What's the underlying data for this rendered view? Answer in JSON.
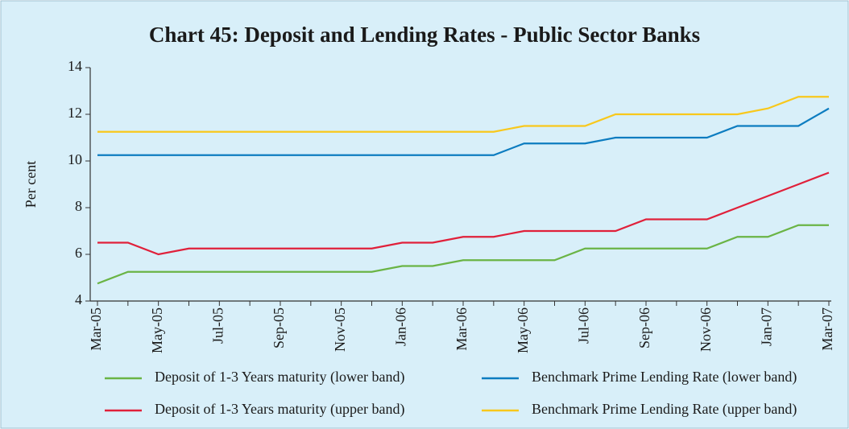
{
  "chart_data": {
    "type": "line",
    "title": "Chart 45: Deposit and Lending Rates - Public Sector Banks",
    "y_label": "Per cent",
    "categories": [
      "Mar-05",
      null,
      "May-05",
      null,
      "Jul-05",
      null,
      "Sep-05",
      null,
      "Nov-05",
      null,
      "Jan-06",
      null,
      "Mar-06",
      null,
      "May-06",
      null,
      "Jul-06",
      null,
      "Sep-06",
      null,
      "Nov-06",
      null,
      "Jan-07",
      null,
      "Mar-07"
    ],
    "series": [
      {
        "name": "Deposit of 1-3 Years maturity (lower band)",
        "color": "#6ab445",
        "values": [
          4.75,
          5.25,
          5.25,
          5.25,
          5.25,
          5.25,
          5.25,
          5.25,
          5.25,
          5.25,
          5.5,
          5.5,
          5.75,
          5.75,
          5.75,
          5.75,
          6.25,
          6.25,
          6.25,
          6.25,
          6.25,
          6.75,
          6.75,
          7.25,
          7.25
        ]
      },
      {
        "name": "Deposit of 1-3 Years maturity (upper band)",
        "color": "#e0203a",
        "values": [
          6.5,
          6.5,
          6.0,
          6.25,
          6.25,
          6.25,
          6.25,
          6.25,
          6.25,
          6.25,
          6.5,
          6.5,
          6.75,
          6.75,
          7.0,
          7.0,
          7.0,
          7.0,
          7.5,
          7.5,
          7.5,
          8.0,
          8.5,
          9.0,
          9.5
        ]
      },
      {
        "name": "Benchmark Prime Lending Rate (lower band)",
        "color": "#0c7cc0",
        "values": [
          10.25,
          10.25,
          10.25,
          10.25,
          10.25,
          10.25,
          10.25,
          10.25,
          10.25,
          10.25,
          10.25,
          10.25,
          10.25,
          10.25,
          10.75,
          10.75,
          10.75,
          11.0,
          11.0,
          11.0,
          11.0,
          11.5,
          11.5,
          11.5,
          12.25
        ]
      },
      {
        "name": "Benchmark Prime Lending Rate (upper band)",
        "color": "#f8c81c",
        "values": [
          11.25,
          11.25,
          11.25,
          11.25,
          11.25,
          11.25,
          11.25,
          11.25,
          11.25,
          11.25,
          11.25,
          11.25,
          11.25,
          11.25,
          11.5,
          11.5,
          11.5,
          12.0,
          12.0,
          12.0,
          12.0,
          12.0,
          12.25,
          12.75,
          12.75
        ]
      }
    ],
    "ylim": [
      4,
      14
    ],
    "yticks": [
      4,
      6,
      8,
      10,
      12,
      14
    ],
    "grid": false
  }
}
